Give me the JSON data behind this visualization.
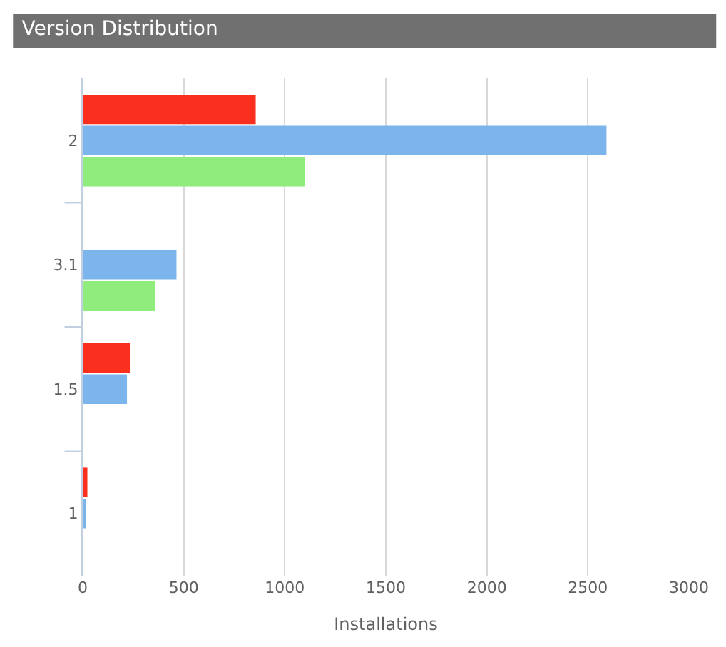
{
  "chart_data": {
    "type": "bar",
    "orientation": "horizontal",
    "title": "Version Distribution",
    "xlabel": "Installations",
    "categories": [
      "2",
      "3.1",
      "1.5",
      "1"
    ],
    "series": [
      {
        "color": "#fb2f1e",
        "values": [
          856,
          null,
          233,
          23
        ]
      },
      {
        "color": "#7cb4ec",
        "values": [
          2592,
          464,
          219,
          9
        ]
      },
      {
        "color": "#90ed7d",
        "values": [
          1101,
          359,
          null,
          null
        ]
      }
    ],
    "xlim": [
      0,
      3000
    ],
    "xticks": [
      0,
      500,
      1000,
      1500,
      2000,
      2500,
      3000
    ],
    "grid": "x"
  }
}
